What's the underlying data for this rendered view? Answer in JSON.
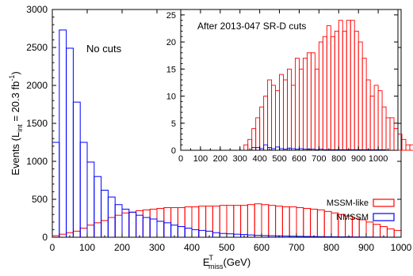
{
  "chart_data": [
    {
      "type": "bar",
      "panel": "main",
      "annotation": "No cuts",
      "xlabel_base": "E",
      "xlabel_sup": "T",
      "xlabel_sub": "miss",
      "xlabel_tail": "(GeV)",
      "ylabel_main": "Events  (L",
      "ylabel_sub": "int",
      "ylabel_mid": " = 20.3 fb",
      "ylabel_sup": "-1",
      "ylabel_tail": ")",
      "xlim": [
        0,
        1000
      ],
      "ylim": [
        0,
        3000
      ],
      "xticks": [
        "0",
        "100",
        "200",
        "300",
        "400",
        "500",
        "600",
        "700",
        "800",
        "900",
        "1000"
      ],
      "yticks": [
        "0",
        "500",
        "1000",
        "1500",
        "2000",
        "2500",
        "3000"
      ],
      "bin_width": 20,
      "legend_position": "bottom-right",
      "series": [
        {
          "name": "MSSM-like",
          "color": "#ff0000",
          "values": [
            20,
            40,
            60,
            80,
            120,
            160,
            190,
            220,
            260,
            290,
            320,
            330,
            350,
            360,
            370,
            380,
            390,
            390,
            390,
            400,
            400,
            410,
            410,
            410,
            420,
            420,
            420,
            420,
            430,
            440,
            430,
            420,
            410,
            400,
            400,
            390,
            380,
            370,
            360,
            340,
            320,
            300,
            280,
            250,
            230,
            200,
            170,
            140,
            110,
            90
          ]
        },
        {
          "name": "NMSSM",
          "color": "#0000ff",
          "values": [
            1250,
            2730,
            2490,
            1780,
            1250,
            990,
            800,
            620,
            530,
            430,
            370,
            330,
            290,
            260,
            240,
            210,
            190,
            160,
            140,
            120,
            100,
            90,
            80,
            60,
            50,
            45,
            40,
            35,
            30,
            25,
            22,
            20,
            18,
            16,
            14,
            12,
            10,
            9,
            8,
            7,
            6,
            5,
            5,
            4,
            3,
            3,
            2,
            2,
            1,
            1
          ]
        }
      ]
    },
    {
      "type": "bar",
      "panel": "inset",
      "annotation": "After 2013-047 SR-D cuts",
      "xlim": [
        0,
        1100
      ],
      "ylim": [
        0,
        26
      ],
      "xticks": [
        "0",
        "100",
        "200",
        "300",
        "400",
        "500",
        "600",
        "700",
        "800",
        "900",
        "1000"
      ],
      "yticks": [
        "0",
        "5",
        "10",
        "15",
        "20",
        "25"
      ],
      "bin_start": 320,
      "bin_width": 20,
      "series": [
        {
          "name": "MSSM-like",
          "color": "#ff0000",
          "values": [
            1,
            2,
            4,
            6,
            8,
            10,
            13,
            12,
            11,
            14,
            13,
            15,
            12,
            17,
            15,
            17,
            18,
            18,
            15,
            20,
            21,
            23,
            21,
            22,
            24,
            22,
            24,
            24,
            22,
            20,
            17,
            13,
            10,
            12,
            11,
            8,
            6,
            6,
            4,
            3,
            2,
            1,
            1
          ]
        },
        {
          "name": "NMSSM",
          "color": "#0000ff",
          "values": [
            0,
            0,
            0.5,
            0.5,
            0.3,
            1,
            0.5,
            0.3,
            0.6,
            0.3,
            0.2,
            0.4,
            0.3,
            0.2,
            0.3,
            0.2,
            0.2,
            0.2,
            0.1,
            0.2,
            0.1,
            0.1,
            0.1,
            0.1,
            0.1,
            0.1,
            0.1,
            0.1,
            0.1,
            0.1,
            0.1,
            0.1,
            0.1,
            0.1,
            0.1,
            0.1,
            0,
            0,
            0,
            0,
            0,
            0,
            0
          ]
        }
      ]
    }
  ]
}
